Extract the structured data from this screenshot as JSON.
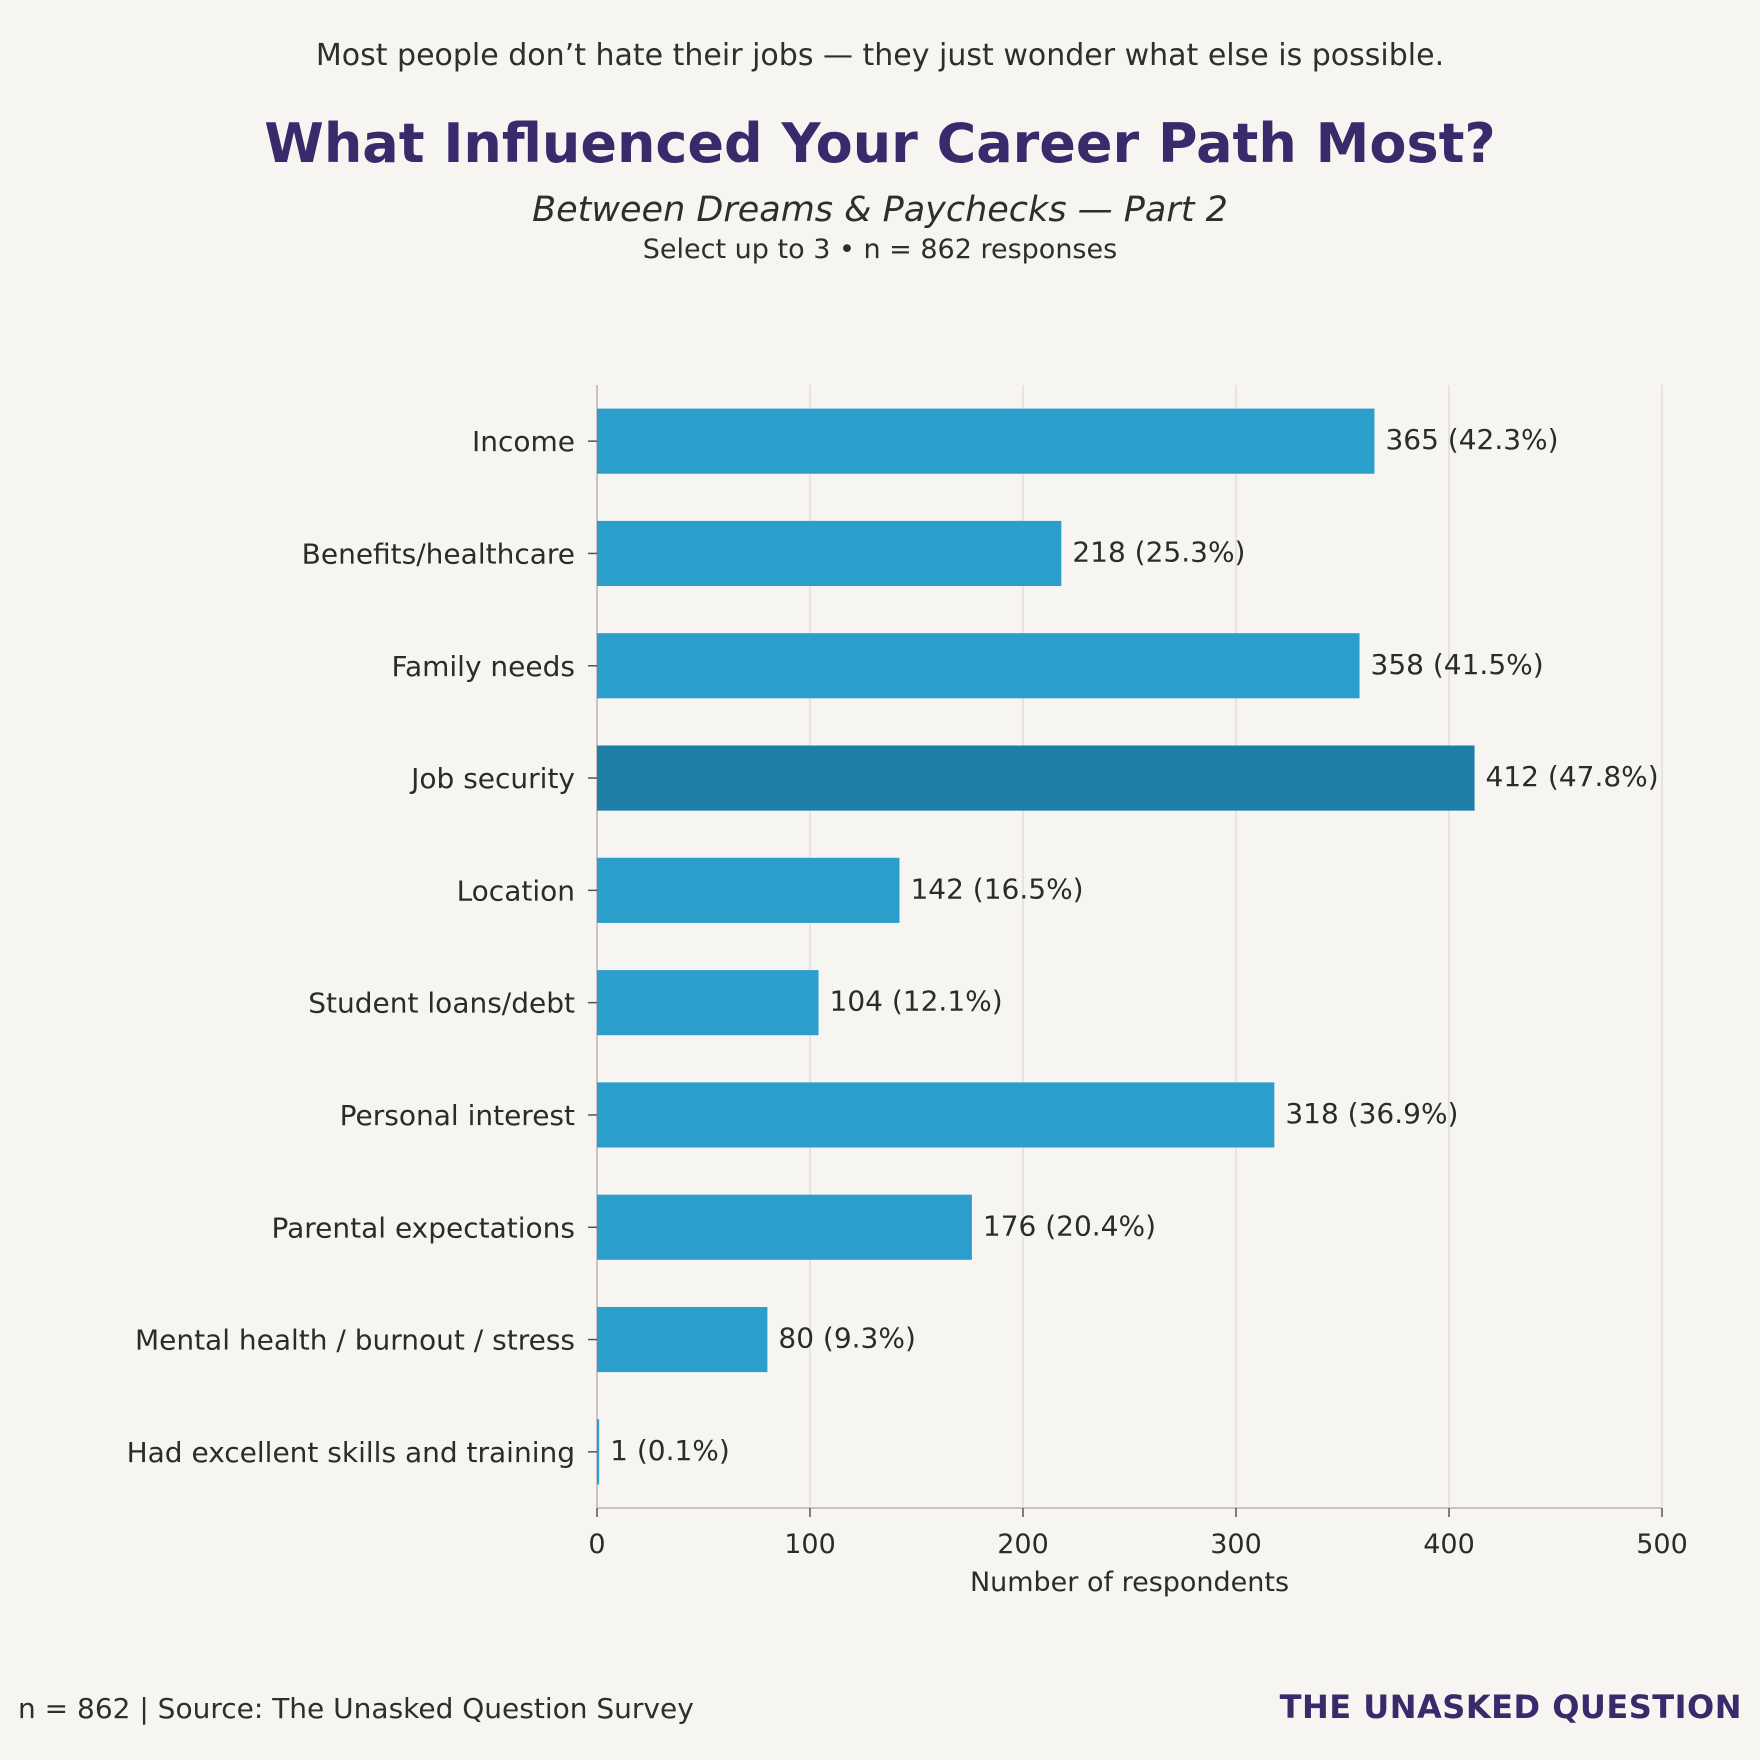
{
  "header": {
    "tagline": "Most people don’t hate their jobs — they just wonder what else is possible.",
    "title": "What Influenced Your Career Path Most?",
    "subtitle": "Between Dreams & Paychecks — Part 2",
    "note": "Select up to 3 • n = 862 responses"
  },
  "footer": {
    "source": "n = 862 | Source: The Unasked Question Survey",
    "brand": "THE UNASKED QUESTION"
  },
  "colors": {
    "bar": "#2b9ecb",
    "bar_highlight": "#1e7ea5",
    "grid": "#e2dfdb",
    "axis": "#c8c4bf",
    "text": "#2b2b2b"
  },
  "chart_data": {
    "type": "bar",
    "orientation": "horizontal",
    "categories": [
      "Income",
      "Benefits/healthcare",
      "Family needs",
      "Job security",
      "Location",
      "Student loans/debt",
      "Personal interest",
      "Parental expectations",
      "Mental health / burnout / stress",
      "Had excellent skills and training"
    ],
    "values": [
      365,
      218,
      358,
      412,
      142,
      104,
      318,
      176,
      80,
      1
    ],
    "data_labels": [
      "365 (42.3%)",
      "218 (25.3%)",
      "358 (41.5%)",
      "412 (47.8%)",
      "142 (16.5%)",
      "104 (12.1%)",
      "318 (36.9%)",
      "176 (20.4%)",
      "80 (9.3%)",
      "1 (0.1%)"
    ],
    "highlight": "Job security",
    "xlabel": "Number of respondents",
    "ylabel": "",
    "xlim": [
      0,
      500
    ],
    "xticks": [
      0,
      100,
      200,
      300,
      400,
      500
    ],
    "grid": "vertical"
  }
}
